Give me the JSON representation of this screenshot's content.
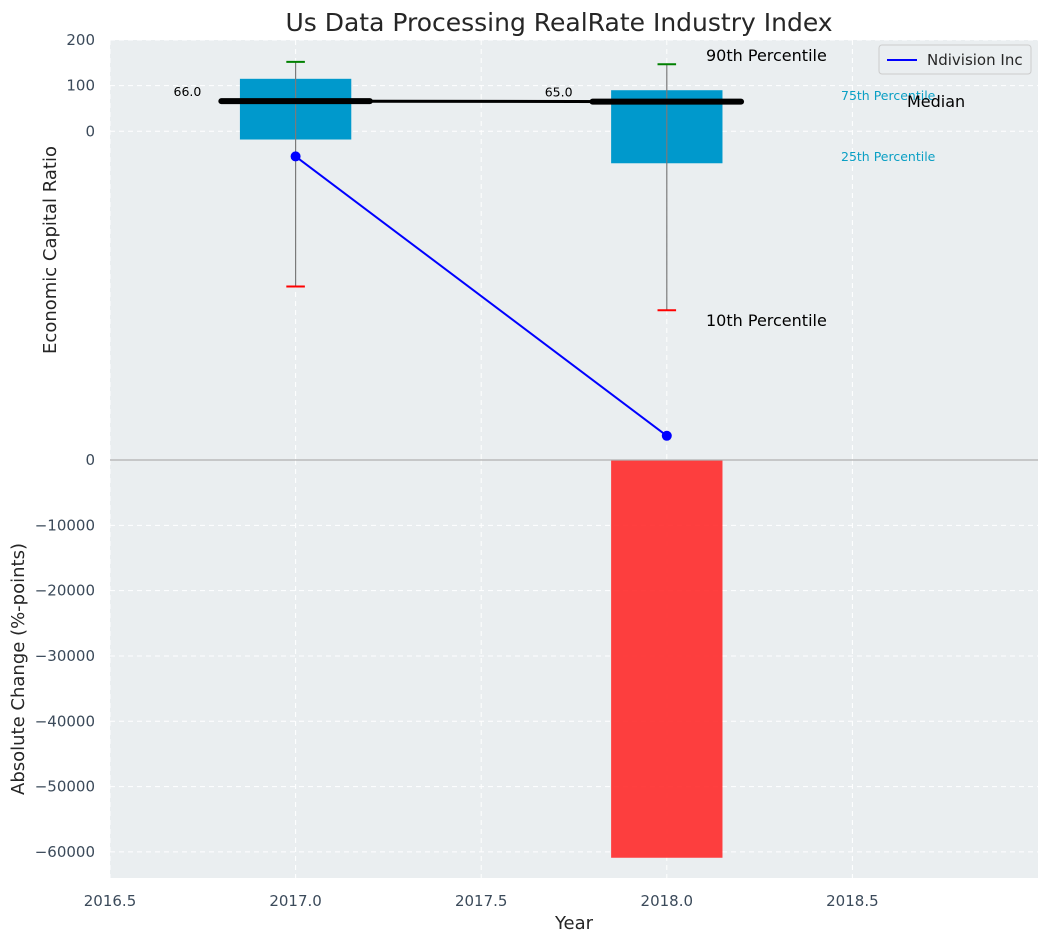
{
  "chart_data": {
    "type": "box-and-bar",
    "title": "Us Data Processing RealRate Industry Index",
    "xlabel": "Year",
    "x_ticks": [
      "2016.5",
      "2017.0",
      "2017.5",
      "2018.0",
      "2018.5"
    ],
    "x_range": [
      2016.5,
      2019.0
    ],
    "grid": true,
    "top_panel": {
      "ylabel": "Economic Capital Ratio",
      "y_ticks": [
        "200",
        "100",
        "0"
      ],
      "y_range": [
        -720,
        200
      ],
      "boxes": [
        {
          "year": 2017.0,
          "p10": -340,
          "p25": -18,
          "median": 66,
          "p75": 115,
          "p90": 152,
          "median_label": "66.0"
        },
        {
          "year": 2018.0,
          "p10": -392,
          "p25": -70,
          "median": 65,
          "p75": 90,
          "p90": 147,
          "median_label": "65.0"
        }
      ],
      "series": [
        {
          "name": "Ndivision Inc",
          "color": "#0000ff",
          "x": [
            2017.0,
            2018.0
          ],
          "y": [
            -55,
            -667
          ]
        }
      ],
      "annotations": {
        "p90": "90th Percentile",
        "p75": "75th Percentile",
        "median": "Median",
        "p25": "25th Percentile",
        "p10": "10th Percentile"
      },
      "legend_position": "top-right"
    },
    "bottom_panel": {
      "ylabel": "Absolute Change (%-points)",
      "y_ticks": [
        "0",
        "−10000",
        "−20000",
        "−30000",
        "−40000",
        "−50000",
        "−60000"
      ],
      "y_range": [
        -64000,
        0
      ],
      "bars": [
        {
          "year": 2018.0,
          "value": -60900,
          "color": "#ff2a2a"
        }
      ]
    },
    "colors": {
      "box": "#0099cc",
      "median": "#000000",
      "whisker_top": "#008000",
      "whisker_bottom": "#ff0000",
      "background": "#eaeef0"
    }
  }
}
